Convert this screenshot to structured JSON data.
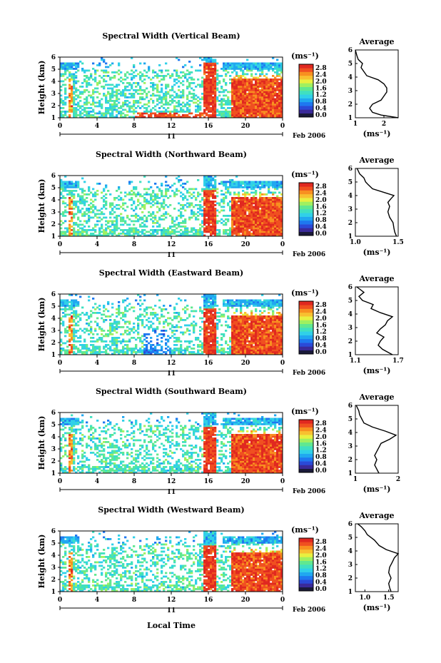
{
  "figure": {
    "date_label": "Feb 2006",
    "day_label": "11",
    "xlabel": "Local Time",
    "ylabel": "Height (km)",
    "colorbar_unit": "(ms⁻¹)",
    "avg_title": "Average",
    "avg_xlabel": "(ms⁻¹)"
  },
  "chart_data": [
    {
      "type": "heatmap",
      "title": "Spectral Width (Vertical Beam)",
      "x_ticks": [
        "0",
        "4",
        "8",
        "12",
        "16",
        "20",
        "0"
      ],
      "y_ticks": [
        "1",
        "2",
        "3",
        "4",
        "5",
        "6"
      ],
      "xlim": [
        0,
        24
      ],
      "ylim": [
        1,
        6
      ],
      "colorbar_ticks": [
        "2.8",
        "2.4",
        "2.0",
        "1.6",
        "1.2",
        "0.8",
        "0.4",
        "0.0"
      ],
      "colorbar_range": [
        0,
        3.0
      ],
      "avg_profile": {
        "xlim": [
          1,
          2.5
        ],
        "x_ticks": [
          "1",
          "2"
        ],
        "points": [
          [
            2.5,
            1.0
          ],
          [
            1.9,
            1.2
          ],
          [
            1.6,
            1.4
          ],
          [
            1.5,
            1.7
          ],
          [
            1.6,
            2.0
          ],
          [
            1.9,
            2.3
          ],
          [
            2.0,
            2.6
          ],
          [
            2.1,
            2.9
          ],
          [
            2.1,
            3.2
          ],
          [
            2.0,
            3.5
          ],
          [
            1.8,
            3.8
          ],
          [
            1.4,
            4.1
          ],
          [
            1.3,
            4.4
          ],
          [
            1.2,
            4.7
          ],
          [
            1.25,
            5.0
          ],
          [
            1.1,
            5.3
          ],
          [
            1.05,
            5.6
          ],
          [
            1.0,
            6.0
          ]
        ]
      }
    },
    {
      "type": "heatmap",
      "title": "Spectral Width (Northward Beam)",
      "x_ticks": [
        "0",
        "4",
        "8",
        "12",
        "16",
        "20",
        "0"
      ],
      "y_ticks": [
        "1",
        "2",
        "3",
        "4",
        "5",
        "6"
      ],
      "xlim": [
        0,
        24
      ],
      "ylim": [
        1,
        6
      ],
      "colorbar_ticks": [
        "2.8",
        "2.4",
        "2.0",
        "1.6",
        "1.2",
        "0.8",
        "0.4",
        "0.0"
      ],
      "colorbar_range": [
        0,
        3.0
      ],
      "avg_profile": {
        "xlim": [
          1.0,
          1.5
        ],
        "x_ticks": [
          "1.0",
          "1.5"
        ],
        "points": [
          [
            1.48,
            1.0
          ],
          [
            1.46,
            1.3
          ],
          [
            1.45,
            1.6
          ],
          [
            1.44,
            2.0
          ],
          [
            1.4,
            2.4
          ],
          [
            1.38,
            2.8
          ],
          [
            1.4,
            3.2
          ],
          [
            1.38,
            3.5
          ],
          [
            1.42,
            3.8
          ],
          [
            1.45,
            4.0
          ],
          [
            1.35,
            4.2
          ],
          [
            1.2,
            4.5
          ],
          [
            1.15,
            4.8
          ],
          [
            1.12,
            5.0
          ],
          [
            1.1,
            5.3
          ],
          [
            1.05,
            5.6
          ],
          [
            1.02,
            6.0
          ]
        ]
      }
    },
    {
      "type": "heatmap",
      "title": "Spectral Width (Eastward Beam)",
      "x_ticks": [
        "0",
        "4",
        "8",
        "12",
        "16",
        "20",
        "0"
      ],
      "y_ticks": [
        "1",
        "2",
        "3",
        "4",
        "5",
        "6"
      ],
      "xlim": [
        0,
        24
      ],
      "ylim": [
        1,
        6
      ],
      "colorbar_ticks": [
        "2.8",
        "2.4",
        "2.0",
        "1.6",
        "1.2",
        "0.8",
        "0.4",
        "0.0"
      ],
      "colorbar_range": [
        0,
        3.0
      ],
      "avg_profile": {
        "xlim": [
          1.1,
          1.7
        ],
        "x_ticks": [
          "1.1",
          "1.7"
        ],
        "points": [
          [
            1.62,
            1.0
          ],
          [
            1.55,
            1.2
          ],
          [
            1.48,
            1.4
          ],
          [
            1.42,
            1.7
          ],
          [
            1.45,
            2.0
          ],
          [
            1.5,
            2.3
          ],
          [
            1.4,
            2.6
          ],
          [
            1.45,
            2.9
          ],
          [
            1.52,
            3.2
          ],
          [
            1.55,
            3.5
          ],
          [
            1.62,
            3.8
          ],
          [
            1.45,
            4.1
          ],
          [
            1.32,
            4.4
          ],
          [
            1.35,
            4.7
          ],
          [
            1.2,
            5.0
          ],
          [
            1.15,
            5.3
          ],
          [
            1.22,
            5.6
          ],
          [
            1.12,
            6.0
          ]
        ]
      }
    },
    {
      "type": "heatmap",
      "title": "Spectral Width (Southward Beam)",
      "x_ticks": [
        "0",
        "4",
        "8",
        "12",
        "16",
        "20",
        "0"
      ],
      "y_ticks": [
        "1",
        "2",
        "3",
        "4",
        "5",
        "6"
      ],
      "xlim": [
        0,
        24
      ],
      "ylim": [
        1,
        6
      ],
      "colorbar_ticks": [
        "2.8",
        "2.4",
        "2.0",
        "1.6",
        "1.2",
        "0.8",
        "0.4",
        "0.0"
      ],
      "colorbar_range": [
        0,
        3.0
      ],
      "avg_profile": {
        "xlim": [
          1,
          2
        ],
        "x_ticks": [
          "1",
          "2"
        ],
        "points": [
          [
            1.55,
            1.0
          ],
          [
            1.5,
            1.3
          ],
          [
            1.45,
            1.6
          ],
          [
            1.5,
            2.0
          ],
          [
            1.45,
            2.3
          ],
          [
            1.5,
            2.6
          ],
          [
            1.55,
            2.9
          ],
          [
            1.6,
            3.2
          ],
          [
            1.8,
            3.5
          ],
          [
            1.95,
            3.8
          ],
          [
            1.7,
            4.1
          ],
          [
            1.4,
            4.4
          ],
          [
            1.2,
            4.7
          ],
          [
            1.15,
            5.0
          ],
          [
            1.1,
            5.3
          ],
          [
            1.08,
            5.6
          ],
          [
            1.02,
            6.0
          ]
        ]
      }
    },
    {
      "type": "heatmap",
      "title": "Spectral Width (Westward Beam)",
      "x_ticks": [
        "0",
        "4",
        "8",
        "12",
        "16",
        "20",
        "0"
      ],
      "y_ticks": [
        "1",
        "2",
        "3",
        "4",
        "5",
        "6"
      ],
      "xlim": [
        0,
        24
      ],
      "ylim": [
        1,
        6
      ],
      "colorbar_ticks": [
        "2.8",
        "2.4",
        "2.0",
        "1.6",
        "1.2",
        "0.8",
        "0.4",
        "0.0"
      ],
      "colorbar_range": [
        0,
        3.0
      ],
      "avg_profile": {
        "xlim": [
          0.8,
          1.7
        ],
        "x_ticks": [
          "1.0",
          "1.5"
        ],
        "points": [
          [
            1.55,
            1.0
          ],
          [
            1.52,
            1.3
          ],
          [
            1.5,
            1.6
          ],
          [
            1.55,
            2.0
          ],
          [
            1.5,
            2.4
          ],
          [
            1.52,
            2.8
          ],
          [
            1.58,
            3.2
          ],
          [
            1.62,
            3.5
          ],
          [
            1.7,
            3.8
          ],
          [
            1.45,
            4.1
          ],
          [
            1.3,
            4.4
          ],
          [
            1.2,
            4.8
          ],
          [
            1.05,
            5.2
          ],
          [
            1.0,
            5.5
          ],
          [
            0.92,
            5.8
          ],
          [
            0.85,
            6.0
          ]
        ]
      }
    }
  ]
}
